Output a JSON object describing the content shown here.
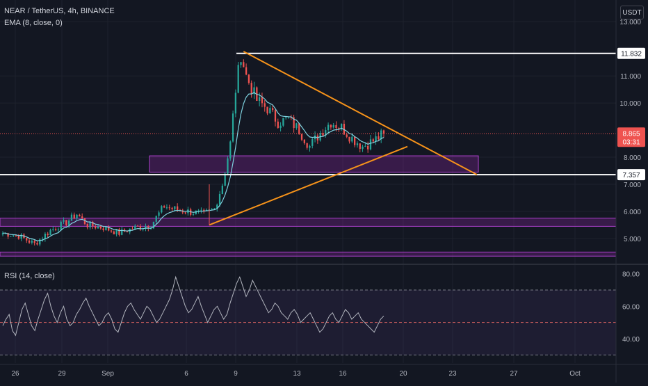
{
  "header": {
    "symbol_line": "NEAR / TetherUS, 4h, BINANCE",
    "ema_line": "EMA (8, close, 0)",
    "currency": "USDT"
  },
  "rsi_pane": {
    "label": "RSI (14, close)",
    "ticks": [
      80.0,
      60.0,
      40.0
    ],
    "tick_labels": [
      "80.00",
      "60.00",
      "40.00"
    ],
    "upper_band": 70,
    "middle_line": 50,
    "lower_band": 30
  },
  "price_badges": {
    "resistance_label": "11.832",
    "support_label": "7.357",
    "last_price_label": "8.865",
    "countdown_label": "03:31"
  },
  "x_axis": {
    "labels": [
      "26",
      "29",
      "Sep",
      "6",
      "9",
      "13",
      "16",
      "20",
      "23",
      "27",
      "Oct"
    ]
  },
  "colors": {
    "background": "#131722",
    "bull_candle": "#26a69a",
    "bear_candle": "#ef5350",
    "ema_line": "#7fd3e0",
    "triangle": "#f7931a",
    "zone": "#9c27b0",
    "rsi_line": "#b2b5be",
    "grid": "#1e222d",
    "level_line": "#ffffff"
  },
  "chart_data": [
    {
      "type": "candlestick",
      "title": "NEAR / TetherUS, 4h, BINANCE",
      "y_axis": {
        "ticks": [
          13.0,
          11.0,
          10.0,
          8.0,
          7.0,
          6.0,
          5.0
        ],
        "tick_labels": [
          "13.000",
          "11.000",
          "10.000",
          "8.000",
          "7.000",
          "6.000",
          "5.000"
        ],
        "range": [
          4.1,
          13.8
        ]
      },
      "x_axis_labels": [
        "26",
        "29",
        "Sep",
        "6",
        "9",
        "13",
        "16",
        "20",
        "23",
        "27",
        "Oct"
      ],
      "close_path": [
        [
          0,
          5.2
        ],
        [
          6,
          5.1
        ],
        [
          12,
          4.8
        ],
        [
          18,
          5.3
        ],
        [
          24,
          5.6
        ],
        [
          28,
          5.9
        ],
        [
          32,
          5.5
        ],
        [
          38,
          5.4
        ],
        [
          44,
          5.2
        ],
        [
          50,
          5.4
        ],
        [
          56,
          5.5
        ],
        [
          61,
          6.2
        ],
        [
          64,
          6.1
        ],
        [
          70,
          6.0
        ],
        [
          76,
          5.9
        ],
        [
          80,
          6.1
        ],
        [
          83,
          7.0
        ],
        [
          86,
          8.5
        ],
        [
          88,
          10.5
        ],
        [
          90,
          11.8
        ],
        [
          92,
          11.0
        ],
        [
          96,
          10.1
        ],
        [
          100,
          9.8
        ],
        [
          104,
          9.3
        ],
        [
          108,
          9.4
        ],
        [
          112,
          9.0
        ],
        [
          116,
          8.4
        ],
        [
          120,
          8.9
        ],
        [
          124,
          9.3
        ],
        [
          128,
          9.1
        ],
        [
          132,
          8.7
        ],
        [
          136,
          8.4
        ],
        [
          140,
          8.6
        ],
        [
          144,
          8.865
        ]
      ],
      "ema": {
        "name": "EMA (8, close, 0)",
        "period": 8
      },
      "last_price": 8.865,
      "horizontal_levels": [
        11.832,
        7.357
      ],
      "zones": [
        {
          "top": 8.05,
          "bottom": 7.45
        },
        {
          "top": 5.75,
          "bottom": 5.45
        },
        {
          "top": 4.5,
          "bottom": 4.35
        }
      ],
      "triangle": {
        "upper_line": [
          [
            91,
            11.9
          ],
          [
            173,
            7.357
          ]
        ],
        "lower_line": [
          [
            82,
            5.5
          ],
          [
            160,
            8.65
          ]
        ]
      }
    },
    {
      "type": "line",
      "title": "RSI (14, close)",
      "y_range": [
        25,
        85
      ],
      "bands": [
        30,
        50,
        70
      ],
      "values": [
        48,
        52,
        55,
        45,
        42,
        50,
        58,
        62,
        55,
        48,
        45,
        52,
        58,
        64,
        68,
        60,
        54,
        50,
        56,
        60,
        52,
        48,
        50,
        55,
        58,
        62,
        65,
        60,
        56,
        52,
        48,
        50,
        54,
        56,
        52,
        46,
        44,
        50,
        56,
        60,
        62,
        58,
        55,
        52,
        56,
        60,
        58,
        54,
        50,
        52,
        56,
        60,
        64,
        70,
        78,
        72,
        66,
        60,
        56,
        58,
        62,
        66,
        60,
        55,
        50,
        54,
        58,
        60,
        56,
        52,
        55,
        62,
        68,
        74,
        78,
        72,
        66,
        70,
        76,
        72,
        68,
        64,
        60,
        56,
        58,
        62,
        60,
        56,
        54,
        52,
        56,
        58,
        55,
        50,
        52,
        54,
        56,
        52,
        48,
        44,
        46,
        50,
        54,
        56,
        52,
        50,
        54,
        58,
        56,
        52,
        54,
        56,
        52,
        50,
        48,
        46,
        44,
        48,
        52,
        54
      ]
    }
  ]
}
